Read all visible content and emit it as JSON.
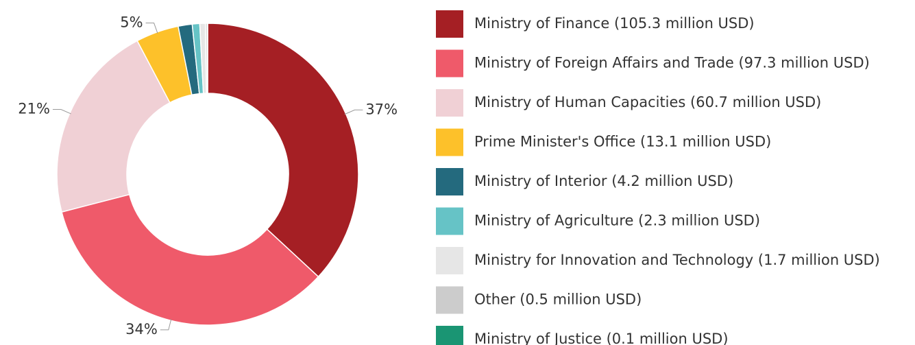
{
  "chart_data": {
    "type": "donut",
    "categories": [
      "Ministry of Finance (105.3 million USD)",
      "Ministry of Foreign Affairs and Trade (97.3 million USD)",
      "Ministry of Human Capacities (60.7 million USD)",
      "Prime Minister's Office (13.1 million USD)",
      "Ministry of Interior (4.2 million USD)",
      "Ministry of Agriculture (2.3 million USD)",
      "Ministry for Innovation and Technology (1.7 million USD)",
      "Other (0.5 million USD)",
      "Ministry of Justice (0.1 million USD)"
    ],
    "values": [
      36.9,
      34.1,
      21.3,
      4.6,
      1.5,
      0.8,
      0.6,
      0.2,
      0.04
    ],
    "value_labels": [
      "37%",
      "34%",
      "21%",
      "5%",
      null,
      null,
      null,
      null,
      null
    ],
    "colors": [
      "#a51f24",
      "#ef5a6a",
      "#f0d0d5",
      "#fdc12a",
      "#246a7e",
      "#66c3c6",
      "#e6e6e6",
      "#cccccc",
      "#1a9573"
    ],
    "legend": "right"
  }
}
